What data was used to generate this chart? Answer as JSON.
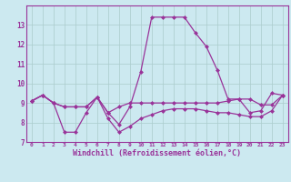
{
  "xlabel": "Windchill (Refroidissement éolien,°C)",
  "background_color": "#cce9f0",
  "line_color": "#993399",
  "grid_color": "#aacccc",
  "hours": [
    0,
    1,
    2,
    3,
    4,
    5,
    6,
    7,
    8,
    9,
    10,
    11,
    12,
    13,
    14,
    15,
    16,
    17,
    18,
    19,
    20,
    21,
    22,
    23
  ],
  "line1": [
    9.1,
    9.4,
    9.0,
    8.8,
    8.8,
    8.8,
    9.3,
    8.5,
    7.9,
    8.8,
    10.6,
    13.4,
    13.4,
    13.4,
    13.4,
    12.6,
    11.9,
    10.7,
    9.2,
    9.2,
    8.5,
    8.6,
    9.5,
    9.4
  ],
  "line2": [
    9.1,
    9.4,
    9.0,
    8.8,
    8.8,
    8.8,
    9.3,
    8.5,
    8.8,
    9.0,
    9.0,
    9.0,
    9.0,
    9.0,
    9.0,
    9.0,
    9.0,
    9.0,
    9.1,
    9.2,
    9.2,
    8.9,
    8.9,
    9.4
  ],
  "line3": [
    9.1,
    9.4,
    9.0,
    7.5,
    7.5,
    8.5,
    9.3,
    8.2,
    7.5,
    7.8,
    8.2,
    8.4,
    8.6,
    8.7,
    8.7,
    8.7,
    8.6,
    8.5,
    8.5,
    8.4,
    8.3,
    8.3,
    8.6,
    9.4
  ],
  "ylim": [
    7,
    14
  ],
  "yticks": [
    7,
    8,
    9,
    10,
    11,
    12,
    13
  ],
  "markersize": 2.5,
  "linewidth": 0.9
}
